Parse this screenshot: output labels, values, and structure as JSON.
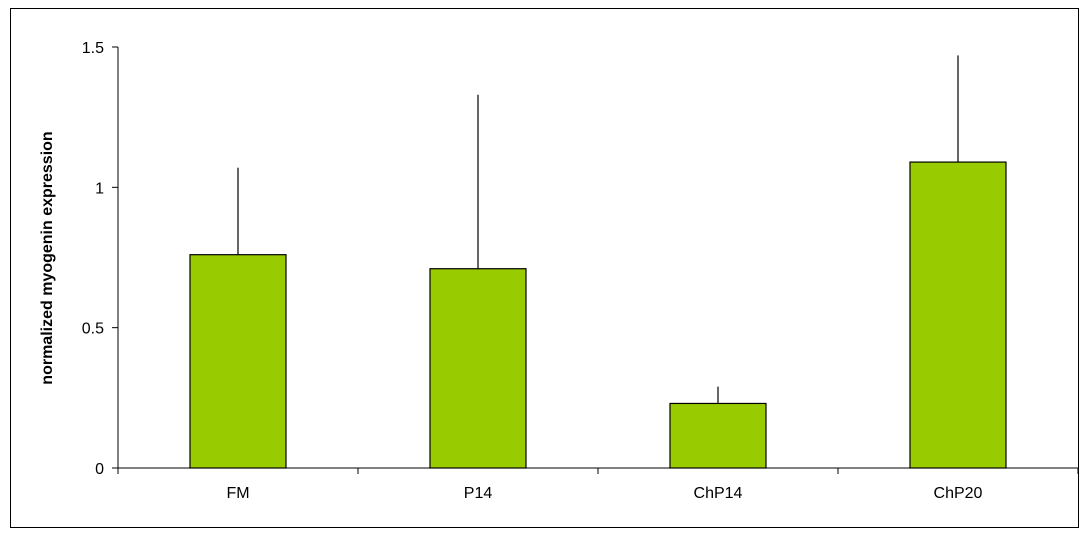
{
  "chart_data": {
    "type": "bar",
    "title": "",
    "xlabel": "",
    "ylabel": "normalized myogenin expression",
    "categories": [
      "FM",
      "P14",
      "ChP14",
      "ChP20"
    ],
    "values": [
      0.76,
      0.71,
      0.23,
      1.09
    ],
    "error_upper": [
      1.07,
      1.33,
      0.29,
      1.47
    ],
    "ylim": [
      0,
      1.5
    ],
    "yticks": [
      0,
      0.5,
      1,
      1.5
    ],
    "ytick_labels": [
      "0",
      "0.5",
      "1",
      "1.5"
    ],
    "grid": false,
    "legend": "none",
    "bar_color": "#99cc00",
    "bar_edge_color": "#000000"
  }
}
